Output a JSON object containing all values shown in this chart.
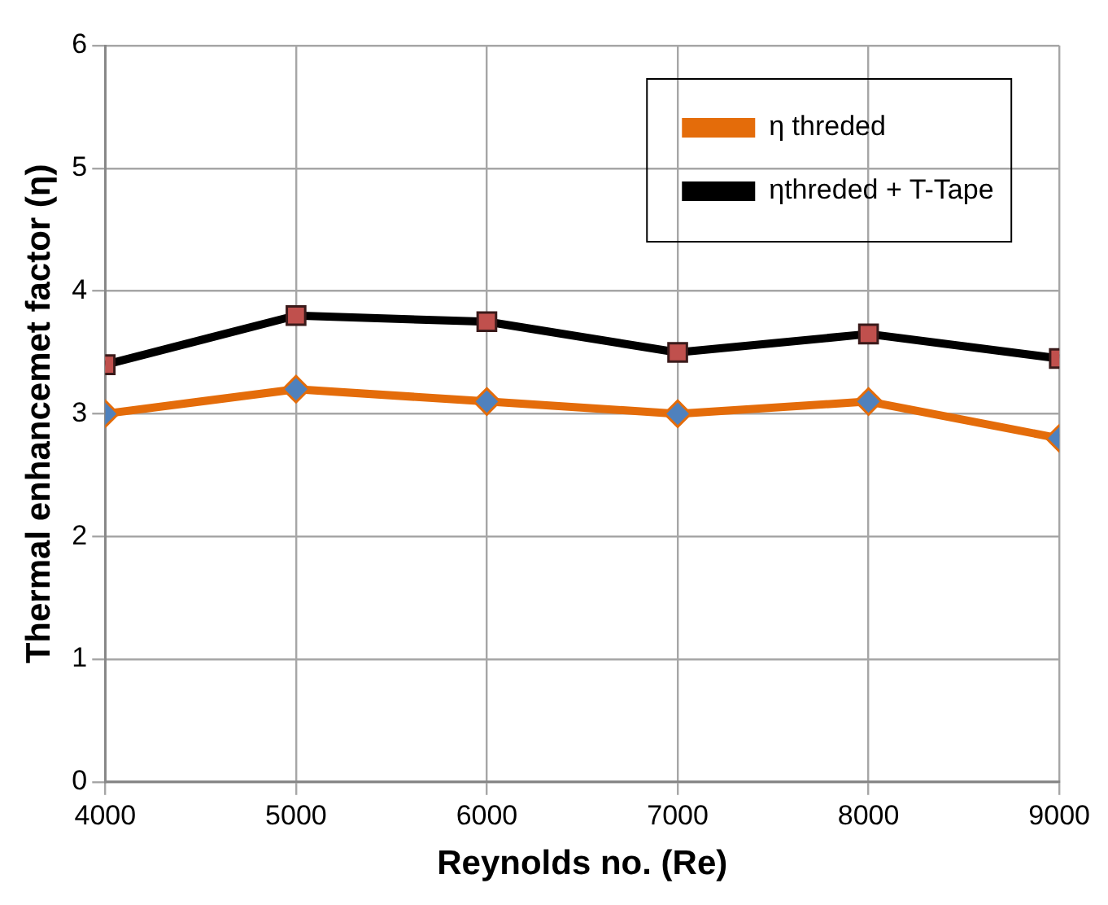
{
  "chart_data": {
    "type": "line",
    "xlabel": "Reynolds no. (Re)",
    "ylabel": "Thermal enhancemet factor (η)",
    "x": [
      4000,
      5000,
      6000,
      7000,
      8000,
      9000
    ],
    "series": [
      {
        "name": "η threded",
        "color": "#e46c0a",
        "values": [
          3.0,
          3.2,
          3.1,
          3.0,
          3.1,
          2.8
        ],
        "marker": "diamond"
      },
      {
        "name": "ηthreded + T-Tape",
        "color": "#000000",
        "values": [
          3.4,
          3.8,
          3.75,
          3.5,
          3.65,
          3.45
        ],
        "marker": "square"
      }
    ],
    "xlim": [
      4000,
      9000
    ],
    "xticks": [
      4000,
      5000,
      6000,
      7000,
      8000,
      9000
    ],
    "ylim": [
      0,
      6
    ],
    "yticks": [
      0,
      1,
      2,
      3,
      4,
      5,
      6
    ],
    "grid": true,
    "legend": "top right",
    "line_style": "solid"
  }
}
